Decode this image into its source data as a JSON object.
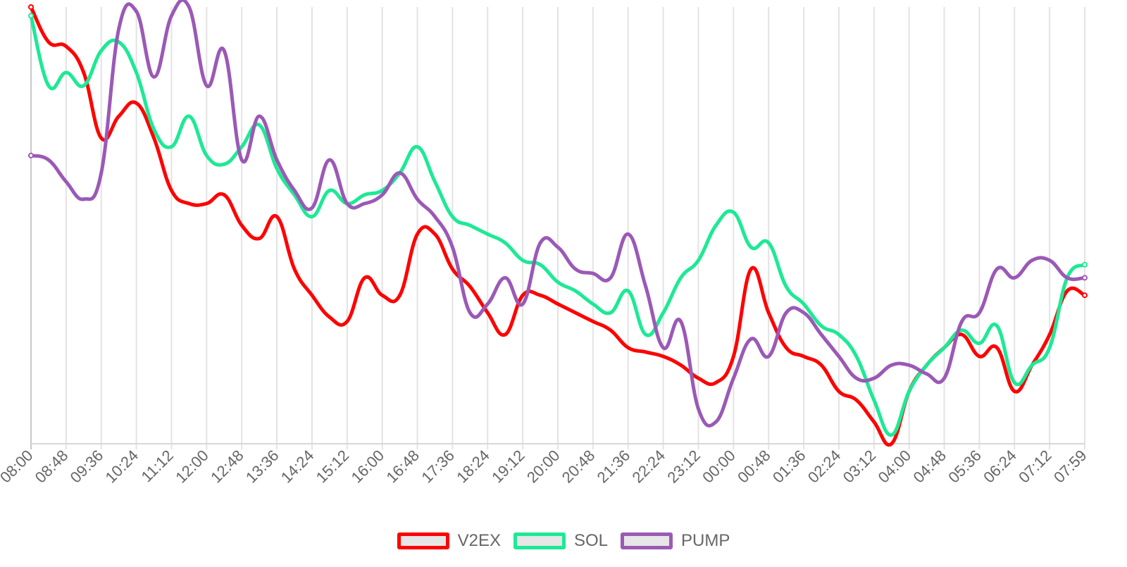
{
  "chart_data": {
    "type": "line",
    "categories": [
      "08:00",
      "08:48",
      "09:36",
      "10:24",
      "11:12",
      "12:00",
      "12:48",
      "13:36",
      "14:24",
      "15:12",
      "16:00",
      "16:48",
      "17:36",
      "18:24",
      "19:12",
      "20:00",
      "20:48",
      "21:36",
      "22:24",
      "23:12",
      "00:00",
      "00:48",
      "01:36",
      "02:24",
      "03:12",
      "04:00",
      "04:48",
      "05:36",
      "06:24",
      "07:12",
      "07:59"
    ],
    "y_range": [
      0,
      100
    ],
    "grid": {
      "vertical": true,
      "horizontal": false
    },
    "legend_position": "bottom",
    "series": [
      {
        "name": "V2EX",
        "color": "#ff0000",
        "points": [
          [
            0,
            100
          ],
          [
            0.5,
            92
          ],
          [
            1,
            91
          ],
          [
            1.5,
            85
          ],
          [
            2,
            70
          ],
          [
            2.5,
            75
          ],
          [
            3,
            78
          ],
          [
            3.5,
            70
          ],
          [
            4,
            58
          ],
          [
            4.5,
            55
          ],
          [
            5,
            55
          ],
          [
            5.5,
            57
          ],
          [
            6,
            50
          ],
          [
            6.5,
            47
          ],
          [
            7,
            52
          ],
          [
            7.5,
            40
          ],
          [
            8,
            34
          ],
          [
            8.5,
            29
          ],
          [
            9,
            28
          ],
          [
            9.5,
            38
          ],
          [
            10,
            34
          ],
          [
            10.5,
            34
          ],
          [
            11,
            48
          ],
          [
            11.5,
            48
          ],
          [
            12,
            40
          ],
          [
            12.5,
            36
          ],
          [
            13,
            30
          ],
          [
            13.5,
            25
          ],
          [
            14,
            34
          ],
          [
            14.5,
            34
          ],
          [
            15,
            32
          ],
          [
            15.5,
            30
          ],
          [
            16,
            28
          ],
          [
            16.5,
            26
          ],
          [
            17,
            22
          ],
          [
            17.5,
            21
          ],
          [
            18,
            20
          ],
          [
            18.5,
            18
          ],
          [
            19,
            15
          ],
          [
            19.5,
            14
          ],
          [
            20,
            20
          ],
          [
            20.5,
            40
          ],
          [
            21,
            30
          ],
          [
            21.5,
            22
          ],
          [
            22,
            20
          ],
          [
            22.5,
            18
          ],
          [
            23,
            12
          ],
          [
            23.5,
            10
          ],
          [
            24,
            5
          ],
          [
            24.5,
            0
          ],
          [
            25,
            12
          ],
          [
            25.5,
            18
          ],
          [
            26,
            22
          ],
          [
            26.5,
            25
          ],
          [
            27,
            20
          ],
          [
            27.5,
            22
          ],
          [
            28,
            12
          ],
          [
            28.5,
            18
          ],
          [
            29,
            25
          ],
          [
            29.5,
            35
          ],
          [
            30,
            34
          ]
        ]
      },
      {
        "name": "SOL",
        "color": "#1de995",
        "points": [
          [
            0,
            98
          ],
          [
            0.5,
            82
          ],
          [
            1,
            85
          ],
          [
            1.5,
            82
          ],
          [
            2,
            90
          ],
          [
            2.5,
            92
          ],
          [
            3,
            85
          ],
          [
            3.5,
            72
          ],
          [
            4,
            68
          ],
          [
            4.5,
            75
          ],
          [
            5,
            66
          ],
          [
            5.5,
            64
          ],
          [
            6,
            68
          ],
          [
            6.5,
            73
          ],
          [
            7,
            63
          ],
          [
            7.5,
            57
          ],
          [
            8,
            52
          ],
          [
            8.5,
            58
          ],
          [
            9,
            55
          ],
          [
            9.5,
            57
          ],
          [
            10,
            58
          ],
          [
            10.5,
            62
          ],
          [
            11,
            68
          ],
          [
            11.5,
            60
          ],
          [
            12,
            52
          ],
          [
            12.5,
            50
          ],
          [
            13,
            48
          ],
          [
            13.5,
            46
          ],
          [
            14,
            42
          ],
          [
            14.5,
            41
          ],
          [
            15,
            37
          ],
          [
            15.5,
            35
          ],
          [
            16,
            32
          ],
          [
            16.5,
            30
          ],
          [
            17,
            35
          ],
          [
            17.5,
            25
          ],
          [
            18,
            30
          ],
          [
            18.5,
            38
          ],
          [
            19,
            42
          ],
          [
            19.5,
            50
          ],
          [
            20,
            53
          ],
          [
            20.5,
            45
          ],
          [
            21,
            46
          ],
          [
            21.5,
            36
          ],
          [
            22,
            32
          ],
          [
            22.5,
            27
          ],
          [
            23,
            25
          ],
          [
            23.5,
            20
          ],
          [
            24,
            10
          ],
          [
            24.5,
            2
          ],
          [
            25,
            12
          ],
          [
            25.5,
            18
          ],
          [
            26,
            22
          ],
          [
            26.5,
            26
          ],
          [
            27,
            23
          ],
          [
            27.5,
            27
          ],
          [
            28,
            14
          ],
          [
            28.5,
            18
          ],
          [
            29,
            22
          ],
          [
            29.5,
            38
          ],
          [
            30,
            41
          ]
        ]
      },
      {
        "name": "PUMP",
        "color": "#9b59b6",
        "points": [
          [
            0,
            66
          ],
          [
            0.5,
            65
          ],
          [
            1,
            60
          ],
          [
            1.5,
            56
          ],
          [
            2,
            62
          ],
          [
            2.5,
            95
          ],
          [
            3,
            99
          ],
          [
            3.5,
            84
          ],
          [
            4,
            98
          ],
          [
            4.5,
            100
          ],
          [
            5,
            82
          ],
          [
            5.5,
            90
          ],
          [
            6,
            65
          ],
          [
            6.5,
            75
          ],
          [
            7,
            65
          ],
          [
            7.5,
            58
          ],
          [
            8,
            54
          ],
          [
            8.5,
            65
          ],
          [
            9,
            55
          ],
          [
            9.5,
            55
          ],
          [
            10,
            57
          ],
          [
            10.5,
            62
          ],
          [
            11,
            56
          ],
          [
            11.5,
            52
          ],
          [
            12,
            45
          ],
          [
            12.5,
            30
          ],
          [
            13,
            32
          ],
          [
            13.5,
            38
          ],
          [
            14,
            32
          ],
          [
            14.5,
            46
          ],
          [
            15,
            45
          ],
          [
            15.5,
            40
          ],
          [
            16,
            39
          ],
          [
            16.5,
            38
          ],
          [
            17,
            48
          ],
          [
            17.5,
            36
          ],
          [
            18,
            22
          ],
          [
            18.5,
            28
          ],
          [
            19,
            8
          ],
          [
            19.5,
            5
          ],
          [
            20,
            15
          ],
          [
            20.5,
            24
          ],
          [
            21,
            20
          ],
          [
            21.5,
            30
          ],
          [
            22,
            30
          ],
          [
            22.5,
            25
          ],
          [
            23,
            20
          ],
          [
            23.5,
            15
          ],
          [
            24,
            15
          ],
          [
            24.5,
            18
          ],
          [
            25,
            18
          ],
          [
            25.5,
            16
          ],
          [
            26,
            15
          ],
          [
            26.5,
            28
          ],
          [
            27,
            30
          ],
          [
            27.5,
            40
          ],
          [
            28,
            38
          ],
          [
            28.5,
            42
          ],
          [
            29,
            42
          ],
          [
            29.5,
            38
          ],
          [
            30,
            38
          ]
        ]
      }
    ]
  },
  "legend": {
    "items": [
      {
        "label": "V2EX",
        "color": "#ff0000"
      },
      {
        "label": "SOL",
        "color": "#1de995"
      },
      {
        "label": "PUMP",
        "color": "#9b59b6"
      }
    ]
  }
}
